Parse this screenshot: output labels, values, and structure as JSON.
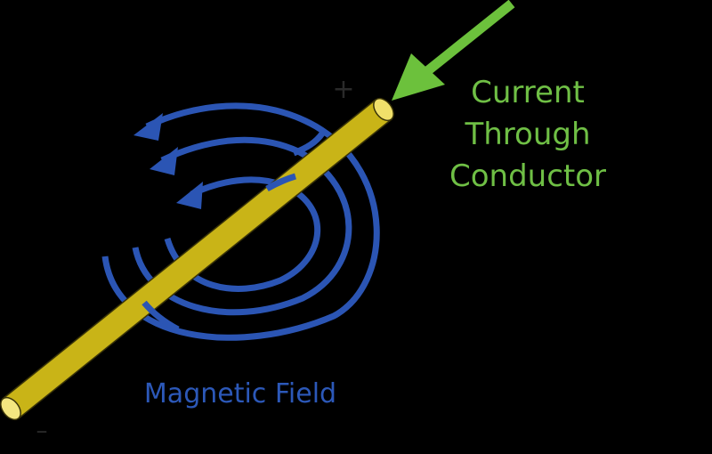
{
  "diagram": {
    "title_lines": [
      "Current",
      "Through",
      "Conductor"
    ],
    "field_label": "Magnetic Field",
    "positive_sign": "+",
    "negative_sign": "–",
    "colors": {
      "background": "#000000",
      "conductor_fill": "#dcc823",
      "conductor_edge": "#3a3408",
      "field_lines": "#2b55b4",
      "current_arrow": "#6cc13c",
      "current_text": "#6fbf45",
      "field_text": "#2c58b8",
      "sign_text": "#2a2a2a"
    },
    "icons": {
      "current_arrow": "arrow-icon",
      "field_loop": "circular-arrow-icon"
    }
  }
}
